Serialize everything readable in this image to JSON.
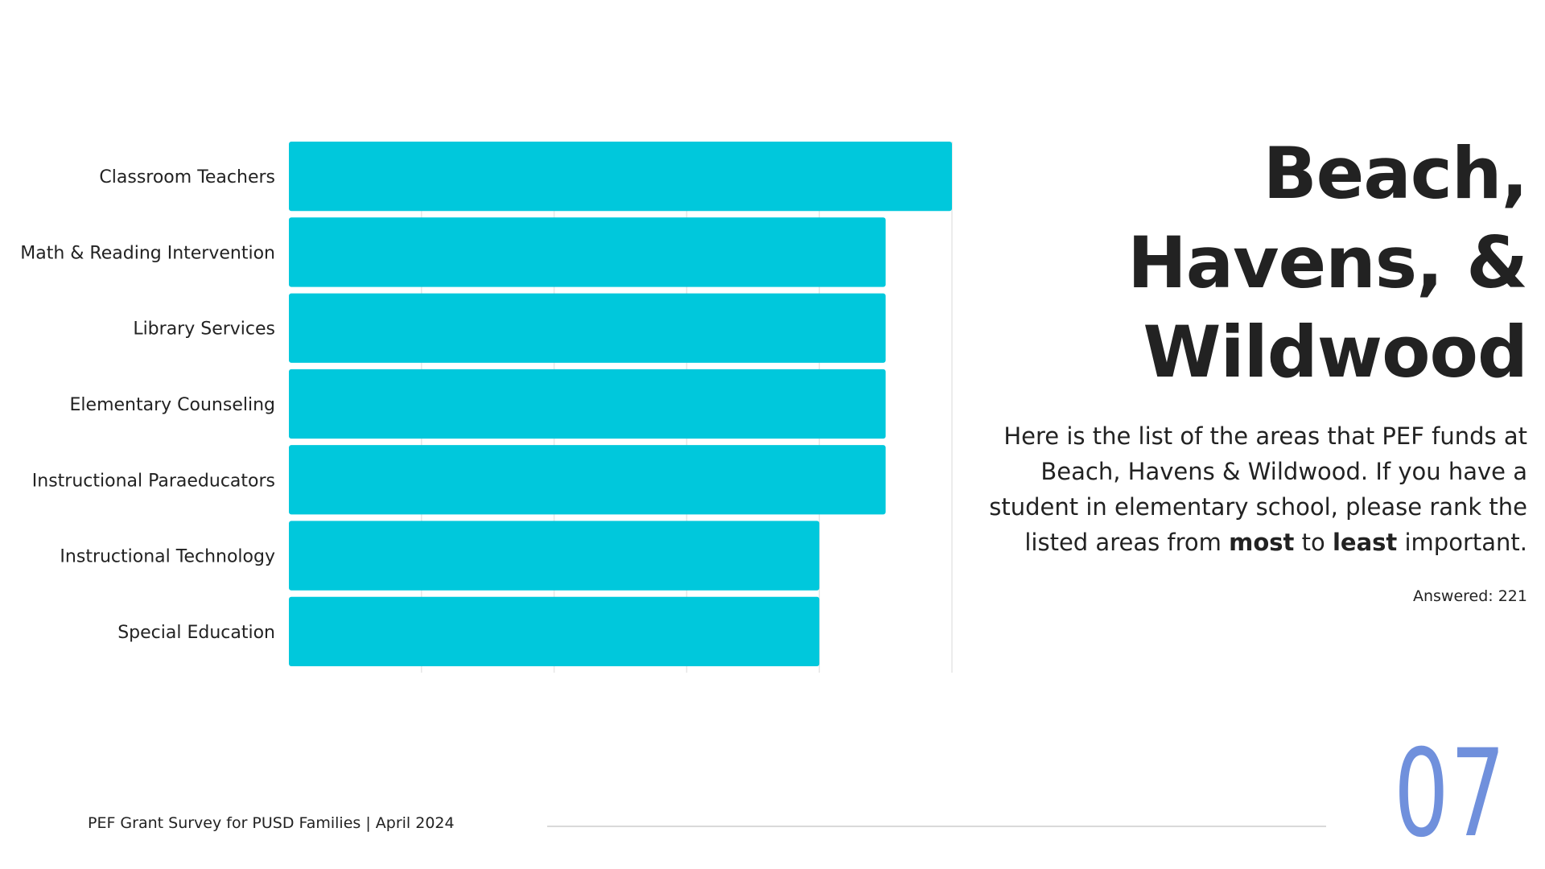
{
  "chart_data": {
    "type": "bar",
    "orientation": "horizontal",
    "categories": [
      "Classroom Teachers",
      "Math & Reading Intervention",
      "Library Services",
      "Elementary Counseling",
      "Instructional Paraeducators",
      "Instructional Technology",
      "Special Education"
    ],
    "values": [
      5,
      4.5,
      4.5,
      4.5,
      4.5,
      4,
      4
    ],
    "xlim": [
      0,
      5
    ],
    "grid": true,
    "bar_color": "#00c8dc",
    "title": "",
    "xlabel": "",
    "ylabel": ""
  },
  "heading": {
    "line1": "Beach,",
    "line2": "Havens, &",
    "line3": "Wildwood"
  },
  "description": {
    "part1": "Here is the list of the areas that PEF funds at Beach, Havens & Wildwood. If you have a student in elementary school, please rank the listed areas from ",
    "bold1": "most",
    "part2": " to ",
    "bold2": "least",
    "part3": " important."
  },
  "answered": "Answered: 221",
  "footer": {
    "text": "PEF Grant Survey for PUSD Families | April 2024",
    "page_number": "07"
  },
  "colors": {
    "accent": "#00c8dc",
    "page_number": "#7090dc",
    "text": "#222222",
    "grid": "#e6e6e6"
  }
}
